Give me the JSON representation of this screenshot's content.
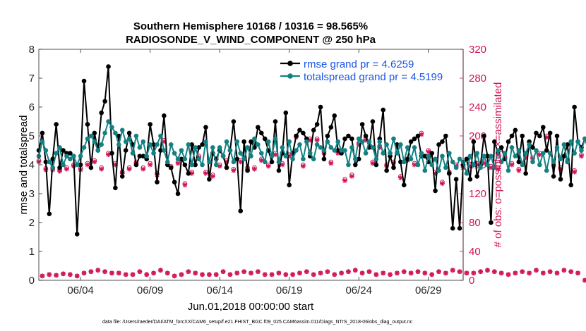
{
  "chart_data": {
    "type": "line",
    "title_line1": "Southern Hemisphere 10168 / 10316 = 98.565%",
    "title_line2": "RADIOSONDE_V_WIND_COMPONENT @ 250 hPa",
    "xlabel": "Jun.01,2018 00:00:00 start",
    "ylabel_left": "rmse and totalspread",
    "ylabel_right": "# of obs: o=possible; ×=assimilated",
    "xlim": [
      0,
      30.5
    ],
    "ylim_left": [
      0,
      8
    ],
    "ylim_right": [
      0,
      320
    ],
    "x_ticks": [
      3,
      8,
      13,
      18,
      23,
      28
    ],
    "x_tick_labels": [
      "06/04",
      "06/09",
      "06/14",
      "06/19",
      "06/24",
      "06/29"
    ],
    "y_ticks_left": [
      "0",
      "1",
      "2",
      "3",
      "4",
      "5",
      "6",
      "7",
      "8"
    ],
    "y_ticks_right": [
      "0",
      "40",
      "80",
      "120",
      "160",
      "200",
      "240",
      "280",
      "320"
    ],
    "x_start": 0,
    "x_step": 0.25,
    "footnote": "data file: /Users/raeder/DAI/ATM_forcXX/CAM6_setup/f.e21.FHIST_BGC.f09_025.CAM6assim.011/Diags_NTrS_2018-06/obs_diag_output.nc",
    "colors": {
      "rmse": "#000000",
      "spread": "#138184",
      "obs": "#d11455",
      "legend_text": "#1a55e8",
      "right_axis": "#d11455"
    },
    "series": [
      {
        "name": "rmse grand pr = 4.6259",
        "axis": "left",
        "values": [
          4.5,
          5.1,
          4.1,
          2.3,
          4.2,
          5.4,
          3.9,
          4.5,
          4.4,
          4.4,
          4.3,
          1.6,
          4.0,
          6.9,
          5.4,
          3.9,
          5.1,
          4.5,
          5.8,
          6.2,
          7.4,
          4.4,
          3.2,
          5.0,
          3.6,
          4.5,
          5.1,
          4.7,
          4.0,
          4.3,
          4.3,
          4.2,
          5.4,
          4.7,
          3.4,
          4.5,
          5.7,
          4.0,
          3.9,
          3.4,
          3.0,
          4.2,
          4.0,
          3.7,
          4.7,
          4.0,
          4.6,
          4.7,
          5.3,
          3.5,
          4.4,
          4.2,
          4.5,
          4.3,
          3.9,
          4.5,
          5.5,
          4.2,
          2.4,
          4.8,
          3.8,
          4.8,
          4.6,
          5.3,
          5.1,
          4.9,
          4.5,
          4.1,
          5.5,
          3.8,
          4.4,
          5.8,
          3.3,
          4.4,
          5.0,
          5.2,
          5.1,
          4.9,
          4.3,
          5.2,
          5.4,
          6.0,
          4.2,
          5.0,
          5.3,
          5.7,
          4.5,
          4.4,
          4.9,
          5.0,
          4.9,
          4.0,
          4.2,
          5.4,
          5.0,
          4.6,
          5.5,
          4.0,
          4.9,
          5.9,
          3.8,
          4.3,
          3.9,
          4.7,
          4.1,
          3.3,
          4.2,
          4.8,
          4.9,
          5.0,
          4.3,
          4.3,
          4.1,
          4.4,
          3.1,
          4.7,
          4.8,
          5.0,
          3.7,
          1.8,
          3.5,
          1.8,
          4.0,
          4.2,
          3.5,
          4.8,
          3.6,
          4.0,
          5.0,
          4.3,
          2.0,
          4.8,
          4.4,
          4.6,
          4.2,
          4.8,
          5.0,
          5.2,
          4.1,
          5.0,
          3.7,
          4.8,
          4.6,
          5.1,
          5.0,
          5.3,
          4.5,
          5.1,
          3.6,
          5.0,
          3.5,
          4.3,
          4.7,
          3.3,
          6.0,
          4.8,
          4.6,
          4.9,
          4.8,
          4.3,
          4.9,
          5.0
        ]
      },
      {
        "name": "totalspread grand pr = 4.5199",
        "axis": "left",
        "values": [
          4.3,
          4.8,
          4.5,
          4.1,
          3.9,
          4.4,
          4.6,
          4.0,
          4.3,
          4.2,
          4.3,
          4.0,
          4.3,
          4.6,
          4.9,
          5.0,
          4.8,
          4.5,
          4.7,
          5.1,
          5.5,
          5.3,
          5.1,
          4.7,
          5.2,
          4.8,
          4.9,
          4.4,
          5.0,
          4.6,
          4.8,
          4.3,
          4.7,
          4.4,
          4.7,
          5.0,
          4.5,
          4.1,
          4.7,
          4.4,
          4.2,
          4.5,
          4.2,
          4.7,
          4.0,
          4.6,
          4.2,
          4.0,
          4.8,
          4.1,
          4.6,
          4.0,
          4.6,
          4.3,
          4.8,
          4.5,
          4.1,
          4.8,
          4.4,
          4.2,
          4.6,
          4.3,
          4.9,
          4.7,
          4.4,
          4.1,
          4.8,
          4.3,
          4.9,
          4.1,
          4.6,
          4.3,
          4.8,
          4.2,
          4.5,
          4.7,
          4.2,
          4.8,
          4.4,
          4.2,
          4.7,
          4.6,
          4.5,
          4.8,
          4.6,
          4.5,
          4.8,
          4.5,
          4.5,
          4.0,
          4.6,
          4.2,
          4.9,
          4.8,
          4.4,
          4.8,
          4.6,
          4.2,
          4.8,
          4.4,
          4.7,
          4.4,
          4.9,
          4.4,
          4.7,
          4.1,
          4.6,
          4.2,
          4.6,
          4.0,
          4.4,
          3.8,
          4.3,
          4.0,
          4.2,
          3.8,
          4.3,
          3.9,
          4.4,
          4.1,
          3.9,
          4.2,
          4.1,
          3.7,
          4.3,
          4.0,
          4.4,
          3.9,
          4.3,
          4.0,
          4.3,
          3.9,
          4.5,
          4.1,
          4.4,
          3.8,
          4.6,
          4.3,
          4.5,
          4.0,
          4.4,
          4.7,
          4.1,
          4.5,
          4.0,
          4.4,
          3.8,
          4.4,
          4.1,
          4.6,
          4.2,
          4.7,
          4.1,
          4.8,
          4.4,
          4.8,
          4.5,
          4.9,
          4.5,
          4.8,
          4.3,
          4.6,
          3.7
        ]
      },
      {
        "name": "obs possible",
        "axis": "right",
        "style": "circle",
        "values": [
          166,
          6,
          155,
          8,
          155,
          7,
          153,
          9,
          156,
          8,
          160,
          6,
          155,
          10,
          162,
          12,
          166,
          14,
          156,
          12,
          176,
          10,
          162,
          10,
          150,
          8,
          156,
          8,
          164,
          12,
          156,
          8,
          162,
          10,
          148,
          14,
          194,
          10,
          158,
          6,
          164,
          8,
          134,
          12,
          150,
          10,
          172,
          8,
          150,
          8,
          146,
          8,
          160,
          12,
          166,
          8,
          154,
          10,
          166,
          12,
          156,
          10,
          156,
          12,
          168,
          8,
          160,
          8,
          176,
          10,
          162,
          8,
          174,
          8,
          200,
          10,
          160,
          12,
          196,
          8,
          196,
          10,
          178,
          12,
          164,
          8,
          178,
          10,
          140,
          12,
          146,
          14,
          190,
          10,
          196,
          12,
          164,
          8,
          186,
          10,
          160,
          8,
          164,
          10,
          144,
          12,
          168,
          10,
          162,
          12,
          204,
          10,
          180,
          8,
          150,
          12,
          136,
          10,
          150,
          14,
          160,
          12,
          158,
          10,
          160,
          10,
          162,
          12,
          164,
          14,
          158,
          12,
          156,
          10,
          172,
          8,
          162,
          10,
          154,
          12,
          172,
          10,
          170,
          14,
          176,
          10,
          200,
          12,
          160,
          10,
          156,
          14,
          166,
          12,
          152,
          10,
          174,
          0
        ]
      },
      {
        "name": "obs assimilated",
        "axis": "right",
        "style": "asterisk",
        "values": [
          164,
          6,
          153,
          8,
          153,
          7,
          151,
          9,
          154,
          8,
          158,
          6,
          153,
          10,
          160,
          12,
          164,
          14,
          154,
          12,
          174,
          10,
          160,
          10,
          148,
          8,
          154,
          8,
          162,
          12,
          154,
          8,
          160,
          10,
          146,
          14,
          192,
          10,
          156,
          6,
          162,
          8,
          132,
          12,
          148,
          10,
          170,
          8,
          148,
          8,
          144,
          8,
          158,
          12,
          164,
          8,
          152,
          10,
          164,
          12,
          154,
          10,
          154,
          12,
          166,
          8,
          158,
          8,
          174,
          10,
          160,
          8,
          172,
          8,
          198,
          10,
          158,
          12,
          194,
          8,
          194,
          10,
          176,
          12,
          162,
          8,
          176,
          10,
          138,
          12,
          144,
          14,
          188,
          10,
          194,
          12,
          162,
          8,
          184,
          10,
          158,
          8,
          162,
          10,
          142,
          12,
          166,
          10,
          160,
          12,
          202,
          10,
          178,
          8,
          148,
          12,
          134,
          10,
          148,
          14,
          158,
          12,
          156,
          10,
          158,
          10,
          160,
          12,
          162,
          14,
          156,
          12,
          154,
          10,
          170,
          8,
          160,
          10,
          152,
          12,
          170,
          10,
          168,
          14,
          174,
          10,
          198,
          12,
          158,
          10,
          154,
          14,
          164,
          12,
          150,
          10,
          172,
          0
        ]
      }
    ]
  }
}
